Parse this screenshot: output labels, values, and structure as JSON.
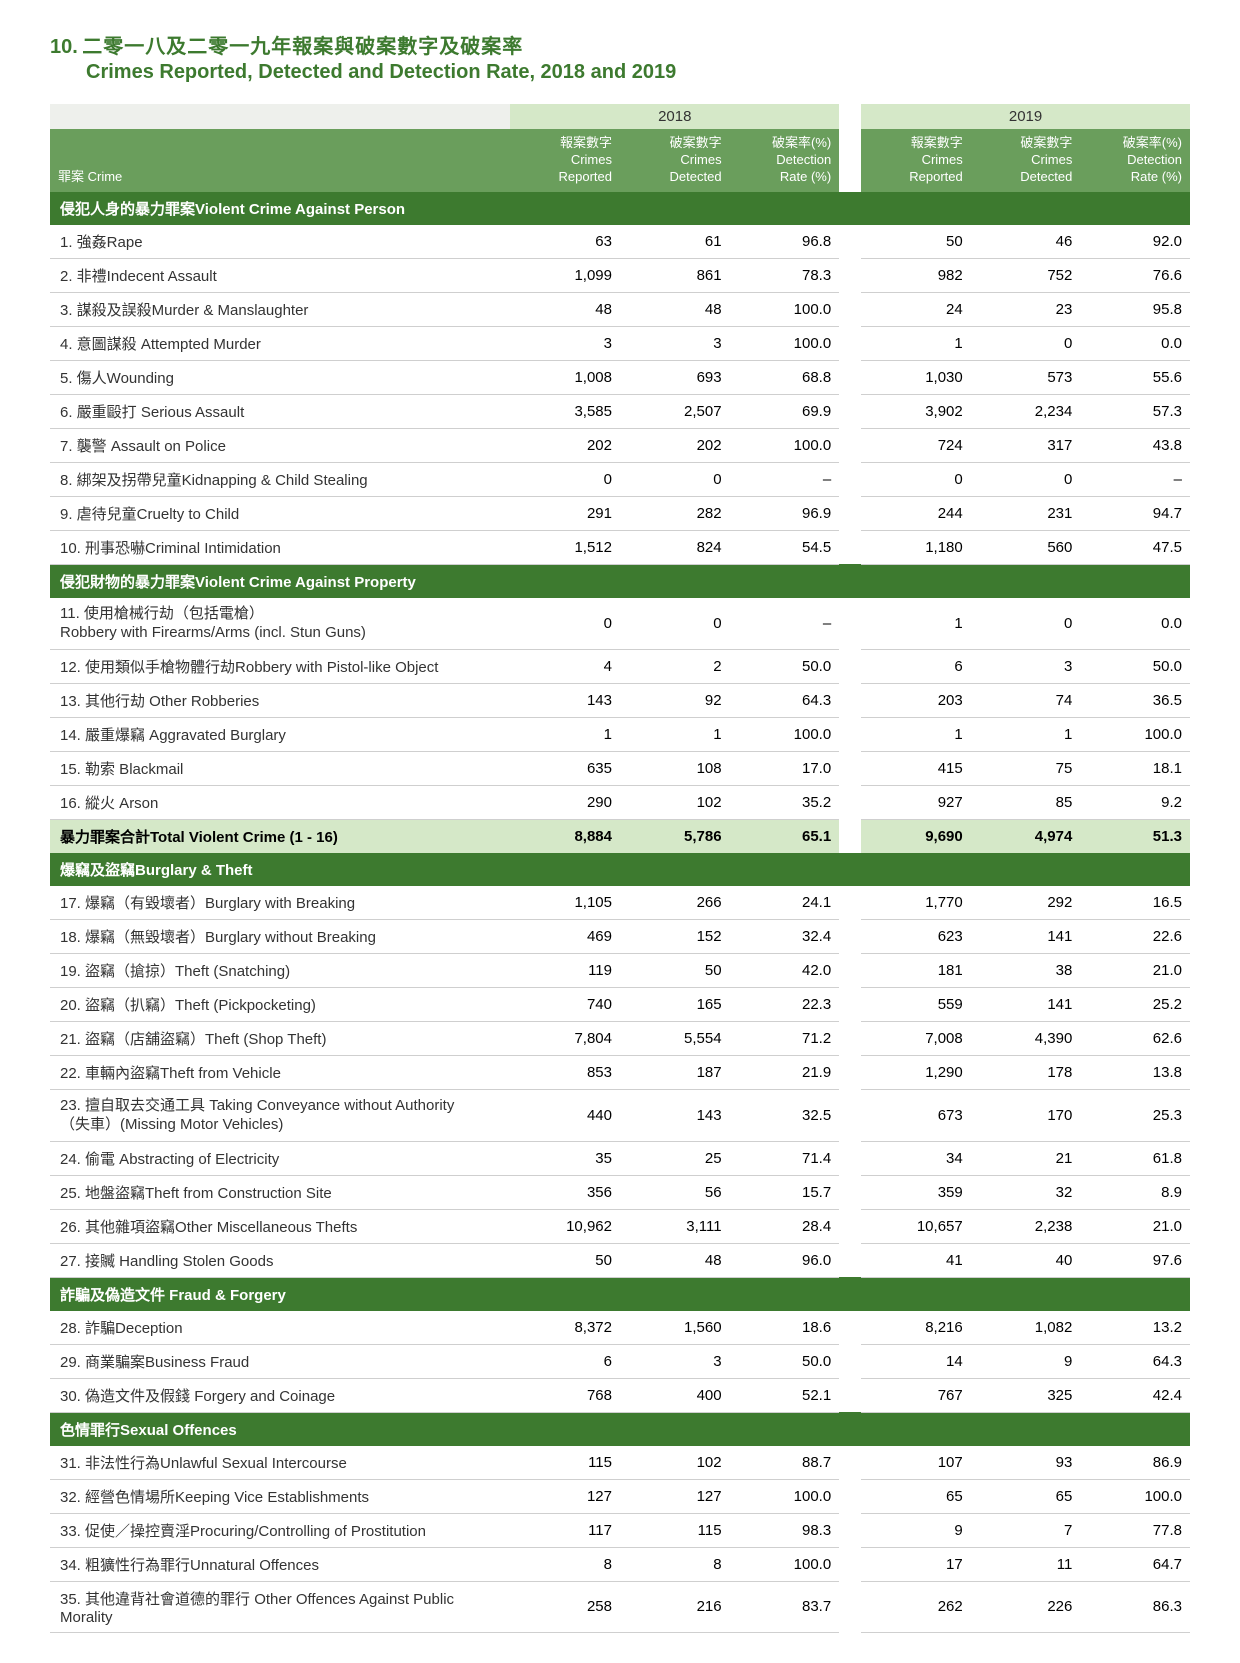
{
  "title": {
    "number": "10.",
    "zh": "二零一八及二零一九年報案與破案數字及破案率",
    "en": "Crimes Reported, Detected and Detection Rate, 2018 and 2019"
  },
  "years": [
    "2018",
    "2019"
  ],
  "subheaders": {
    "crime": "罪案 Crime",
    "reported_zh": "報案數字",
    "reported_en1": "Crimes",
    "reported_en2": "Reported",
    "detected_zh": "破案數字",
    "detected_en1": "Crimes",
    "detected_en2": "Detected",
    "rate_zh": "破案率(%)",
    "rate_en1": "Detection",
    "rate_en2": "Rate (%)"
  },
  "colors": {
    "dark_green": "#3d7a2f",
    "mid_green": "#6a9e5c",
    "light_green": "#d5e8c8",
    "border": "#cfcfcf"
  },
  "sections": [
    {
      "header": "侵犯人身的暴力罪案Violent Crime Against Person",
      "rows": [
        {
          "label": "1.  強姦Rape",
          "r18": "63",
          "d18": "61",
          "p18": "96.8",
          "r19": "50",
          "d19": "46",
          "p19": "92.0"
        },
        {
          "label": "2.  非禮Indecent Assault",
          "r18": "1,099",
          "d18": "861",
          "p18": "78.3",
          "r19": "982",
          "d19": "752",
          "p19": "76.6"
        },
        {
          "label": "3.  謀殺及誤殺Murder & Manslaughter",
          "r18": "48",
          "d18": "48",
          "p18": "100.0",
          "r19": "24",
          "d19": "23",
          "p19": "95.8"
        },
        {
          "label": "4.  意圖謀殺 Attempted Murder",
          "r18": "3",
          "d18": "3",
          "p18": "100.0",
          "r19": "1",
          "d19": "0",
          "p19": "0.0"
        },
        {
          "label": "5.  傷人Wounding",
          "r18": "1,008",
          "d18": "693",
          "p18": "68.8",
          "r19": "1,030",
          "d19": "573",
          "p19": "55.6"
        },
        {
          "label": "6.  嚴重毆打 Serious Assault",
          "r18": "3,585",
          "d18": "2,507",
          "p18": "69.9",
          "r19": "3,902",
          "d19": "2,234",
          "p19": "57.3"
        },
        {
          "label": "7.  襲警 Assault on Police",
          "r18": "202",
          "d18": "202",
          "p18": "100.0",
          "r19": "724",
          "d19": "317",
          "p19": "43.8"
        },
        {
          "label": "8.  綁架及拐帶兒童Kidnapping & Child Stealing",
          "r18": "0",
          "d18": "0",
          "p18": "–",
          "r19": "0",
          "d19": "0",
          "p19": "–"
        },
        {
          "label": "9.  虐待兒童Cruelty to Child",
          "r18": "291",
          "d18": "282",
          "p18": "96.9",
          "r19": "244",
          "d19": "231",
          "p19": "94.7"
        },
        {
          "label": "10. 刑事恐嚇Criminal Intimidation",
          "r18": "1,512",
          "d18": "824",
          "p18": "54.5",
          "r19": "1,180",
          "d19": "560",
          "p19": "47.5"
        }
      ]
    },
    {
      "header": "侵犯財物的暴力罪案Violent Crime Against Property",
      "rows": [
        {
          "label": "11. 使用槍械行劫（包括電槍）\nRobbery with Firearms/Arms (incl. Stun Guns)",
          "r18": "0",
          "d18": "0",
          "p18": "–",
          "r19": "1",
          "d19": "0",
          "p19": "0.0"
        },
        {
          "label": "12. 使用類似手槍物體行劫Robbery with Pistol-like Object",
          "r18": "4",
          "d18": "2",
          "p18": "50.0",
          "r19": "6",
          "d19": "3",
          "p19": "50.0"
        },
        {
          "label": "13. 其他行劫 Other Robberies",
          "r18": "143",
          "d18": "92",
          "p18": "64.3",
          "r19": "203",
          "d19": "74",
          "p19": "36.5"
        },
        {
          "label": "14. 嚴重爆竊 Aggravated Burglary",
          "r18": "1",
          "d18": "1",
          "p18": "100.0",
          "r19": "1",
          "d19": "1",
          "p19": "100.0"
        },
        {
          "label": "15. 勒索 Blackmail",
          "r18": "635",
          "d18": "108",
          "p18": "17.0",
          "r19": "415",
          "d19": "75",
          "p19": "18.1"
        },
        {
          "label": "16. 縱火 Arson",
          "r18": "290",
          "d18": "102",
          "p18": "35.2",
          "r19": "927",
          "d19": "85",
          "p19": "9.2"
        }
      ],
      "total": {
        "label": "暴力罪案合計Total Violent Crime (1 - 16)",
        "r18": "8,884",
        "d18": "5,786",
        "p18": "65.1",
        "r19": "9,690",
        "d19": "4,974",
        "p19": "51.3"
      }
    },
    {
      "header": "爆竊及盜竊Burglary & Theft",
      "rows": [
        {
          "label": "17. 爆竊（有毀壞者）Burglary with Breaking",
          "r18": "1,105",
          "d18": "266",
          "p18": "24.1",
          "r19": "1,770",
          "d19": "292",
          "p19": "16.5"
        },
        {
          "label": "18. 爆竊（無毀壞者）Burglary without Breaking",
          "r18": "469",
          "d18": "152",
          "p18": "32.4",
          "r19": "623",
          "d19": "141",
          "p19": "22.6"
        },
        {
          "label": "19. 盜竊（搶掠）Theft (Snatching)",
          "r18": "119",
          "d18": "50",
          "p18": "42.0",
          "r19": "181",
          "d19": "38",
          "p19": "21.0"
        },
        {
          "label": "20. 盜竊（扒竊）Theft (Pickpocketing)",
          "r18": "740",
          "d18": "165",
          "p18": "22.3",
          "r19": "559",
          "d19": "141",
          "p19": "25.2"
        },
        {
          "label": "21. 盜竊（店舖盜竊）Theft (Shop Theft)",
          "r18": "7,804",
          "d18": "5,554",
          "p18": "71.2",
          "r19": "7,008",
          "d19": "4,390",
          "p19": "62.6"
        },
        {
          "label": "22. 車輛內盜竊Theft from Vehicle",
          "r18": "853",
          "d18": "187",
          "p18": "21.9",
          "r19": "1,290",
          "d19": "178",
          "p19": "13.8"
        },
        {
          "label": "23. 擅自取去交通工具 Taking Conveyance without Authority\n（失車）(Missing Motor Vehicles)",
          "r18": "440",
          "d18": "143",
          "p18": "32.5",
          "r19": "673",
          "d19": "170",
          "p19": "25.3"
        },
        {
          "label": "24. 偷電 Abstracting of Electricity",
          "r18": "35",
          "d18": "25",
          "p18": "71.4",
          "r19": "34",
          "d19": "21",
          "p19": "61.8"
        },
        {
          "label": "25. 地盤盜竊Theft from Construction Site",
          "r18": "356",
          "d18": "56",
          "p18": "15.7",
          "r19": "359",
          "d19": "32",
          "p19": "8.9"
        },
        {
          "label": "26. 其他雜項盜竊Other Miscellaneous Thefts",
          "r18": "10,962",
          "d18": "3,111",
          "p18": "28.4",
          "r19": "10,657",
          "d19": "2,238",
          "p19": "21.0"
        },
        {
          "label": "27. 接贓 Handling Stolen Goods",
          "r18": "50",
          "d18": "48",
          "p18": "96.0",
          "r19": "41",
          "d19": "40",
          "p19": "97.6"
        }
      ]
    },
    {
      "header": "詐騙及偽造文件 Fraud & Forgery",
      "rows": [
        {
          "label": "28. 詐騙Deception",
          "r18": "8,372",
          "d18": "1,560",
          "p18": "18.6",
          "r19": "8,216",
          "d19": "1,082",
          "p19": "13.2"
        },
        {
          "label": "29. 商業騙案Business Fraud",
          "r18": "6",
          "d18": "3",
          "p18": "50.0",
          "r19": "14",
          "d19": "9",
          "p19": "64.3"
        },
        {
          "label": "30. 偽造文件及假錢 Forgery and Coinage",
          "r18": "768",
          "d18": "400",
          "p18": "52.1",
          "r19": "767",
          "d19": "325",
          "p19": "42.4"
        }
      ]
    },
    {
      "header": "色情罪行Sexual Offences",
      "rows": [
        {
          "label": "31. 非法性行為Unlawful Sexual Intercourse",
          "r18": "115",
          "d18": "102",
          "p18": "88.7",
          "r19": "107",
          "d19": "93",
          "p19": "86.9"
        },
        {
          "label": "32. 經營色情場所Keeping Vice Establishments",
          "r18": "127",
          "d18": "127",
          "p18": "100.0",
          "r19": "65",
          "d19": "65",
          "p19": "100.0"
        },
        {
          "label": "33. 促使／操控賣淫Procuring/Controlling of Prostitution",
          "r18": "117",
          "d18": "115",
          "p18": "98.3",
          "r19": "9",
          "d19": "7",
          "p19": "77.8"
        },
        {
          "label": "34. 粗獷性行為罪行Unnatural Offences",
          "r18": "8",
          "d18": "8",
          "p18": "100.0",
          "r19": "17",
          "d19": "11",
          "p19": "64.7"
        },
        {
          "label": "35. 其他違背社會道德的罪行 Other Offences Against Public Morality",
          "r18": "258",
          "d18": "216",
          "p18": "83.7",
          "r19": "262",
          "d19": "226",
          "p19": "86.3"
        }
      ]
    }
  ]
}
